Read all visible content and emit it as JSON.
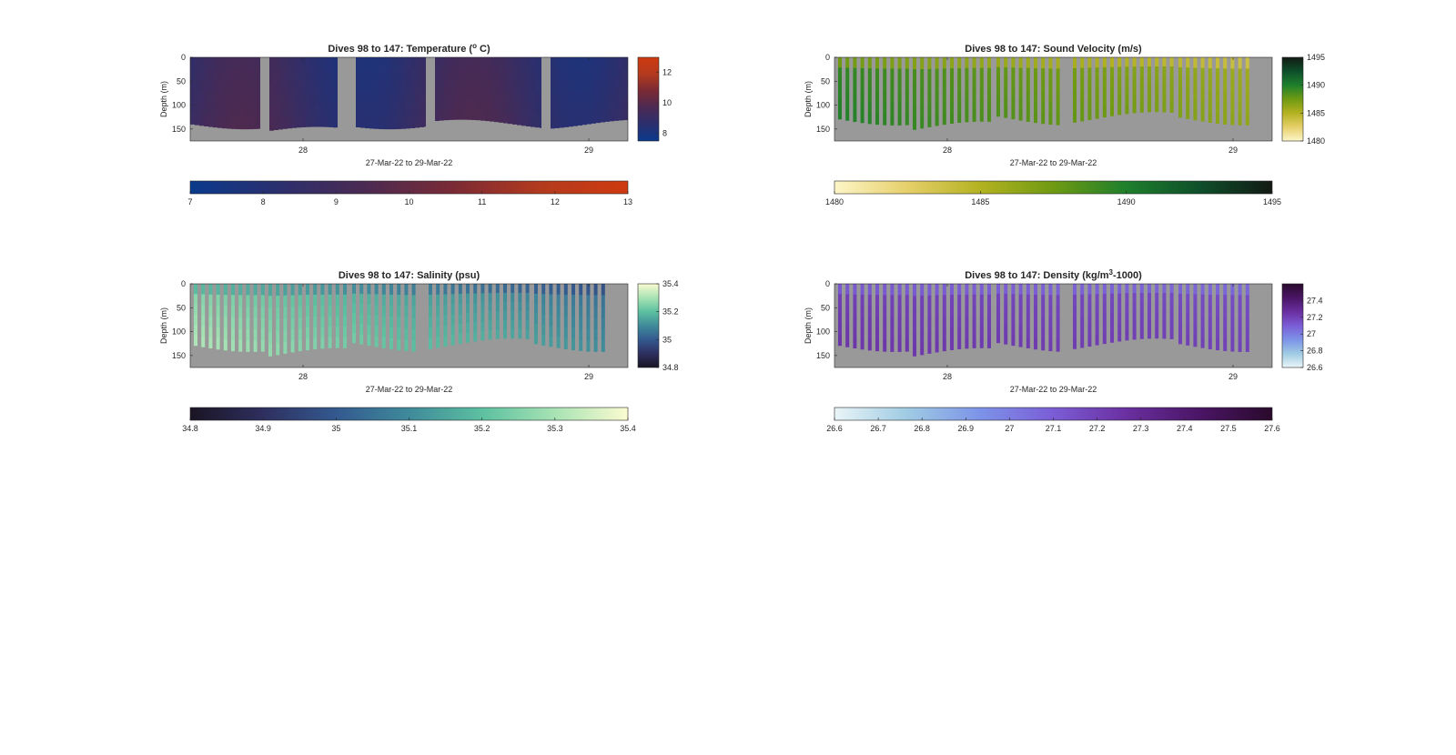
{
  "chart_data": [
    {
      "type": "heatmap",
      "id": "temperature",
      "title_prefix": "Dives 98 to 147: Temperature (",
      "title_sup": "o",
      "title_suffix": " C)",
      "ylabel": "Depth (m)",
      "xlabel": "27-Mar-22 to 29-Mar-22",
      "x_ticks": [
        "28",
        "29"
      ],
      "y_ticks": [
        "0",
        "50",
        "100",
        "150"
      ],
      "ylim": [
        0,
        175
      ],
      "cmap": [
        "#0a3a8c",
        "#2b2f6e",
        "#4b2a52",
        "#7a2a35",
        "#b33a1d",
        "#cf3a10"
      ],
      "side_colorbar": {
        "ticks": [
          "12",
          "10",
          "8"
        ],
        "values": [
          12,
          10,
          8
        ],
        "range": [
          7.5,
          13
        ]
      },
      "bottom_colorbar": {
        "ticks": [
          "7",
          "8",
          "9",
          "10",
          "11",
          "12",
          "13"
        ],
        "range": [
          7,
          13
        ]
      },
      "coverage": "full"
    },
    {
      "type": "heatmap",
      "id": "sound-velocity",
      "title_prefix": "Dives 98 to 147: Sound Velocity (m/s)",
      "title_sup": "",
      "title_suffix": "",
      "ylabel": "Depth (m)",
      "xlabel": "27-Mar-22 to 29-Mar-22",
      "x_ticks": [
        "28",
        "29"
      ],
      "y_ticks": [
        "0",
        "50",
        "100",
        "150"
      ],
      "ylim": [
        0,
        175
      ],
      "cmap": [
        "#fdf6c8",
        "#e6cf6a",
        "#b3b221",
        "#6f9a12",
        "#1e7f2c",
        "#0e4f2a",
        "#121a13"
      ],
      "side_colorbar": {
        "ticks": [
          "1495",
          "1490",
          "1485",
          "1480"
        ],
        "values": [
          1495,
          1490,
          1485,
          1480
        ],
        "range": [
          1480,
          1495
        ]
      },
      "bottom_colorbar": {
        "ticks": [
          "1480",
          "1485",
          "1490",
          "1495"
        ],
        "range": [
          1480,
          1495
        ]
      },
      "coverage": "bars"
    },
    {
      "type": "heatmap",
      "id": "salinity",
      "title_prefix": "Dives 98 to 147: Salinity (psu)",
      "title_sup": "",
      "title_suffix": "",
      "ylabel": "Depth (m)",
      "xlabel": "27-Mar-22 to 29-Mar-22",
      "x_ticks": [
        "28",
        "29"
      ],
      "y_ticks": [
        "0",
        "50",
        "100",
        "150"
      ],
      "ylim": [
        0,
        175
      ],
      "cmap": [
        "#1a1423",
        "#2e2f5f",
        "#33598f",
        "#3f8a9a",
        "#5cc0a0",
        "#a8e3b4",
        "#fbfbd0"
      ],
      "side_colorbar": {
        "ticks": [
          "35.4",
          "35.2",
          "35",
          "34.8"
        ],
        "values": [
          35.4,
          35.2,
          35,
          34.8
        ],
        "range": [
          34.8,
          35.4
        ]
      },
      "bottom_colorbar": {
        "ticks": [
          "34.8",
          "34.9",
          "35",
          "35.1",
          "35.2",
          "35.3",
          "35.4"
        ],
        "range": [
          34.8,
          35.4
        ]
      },
      "coverage": "bars"
    },
    {
      "type": "heatmap",
      "id": "density",
      "title_prefix": "Dives 98 to 147: Density (kg/m",
      "title_sup": "3",
      "title_suffix": "-1000)",
      "ylabel": "Depth (m)",
      "xlabel": "27-Mar-22 to 29-Mar-22",
      "x_ticks": [
        "28",
        "29"
      ],
      "y_ticks": [
        "0",
        "50",
        "100",
        "150"
      ],
      "ylim": [
        0,
        175
      ],
      "cmap": [
        "#e9f5f7",
        "#9fcbe3",
        "#7c93e8",
        "#7b5dd6",
        "#6a2fa0",
        "#4a1565",
        "#2a0a2c"
      ],
      "side_colorbar": {
        "ticks": [
          "27.4",
          "27.2",
          "27",
          "26.8",
          "26.6"
        ],
        "values": [
          27.4,
          27.2,
          27,
          26.8,
          26.6
        ],
        "range": [
          26.6,
          27.6
        ]
      },
      "bottom_colorbar": {
        "ticks": [
          "26.6",
          "26.7",
          "26.8",
          "26.9",
          "27",
          "27.1",
          "27.2",
          "27.3",
          "27.4",
          "27.5",
          "27.6"
        ],
        "range": [
          26.6,
          27.6
        ]
      },
      "coverage": "bars"
    }
  ]
}
